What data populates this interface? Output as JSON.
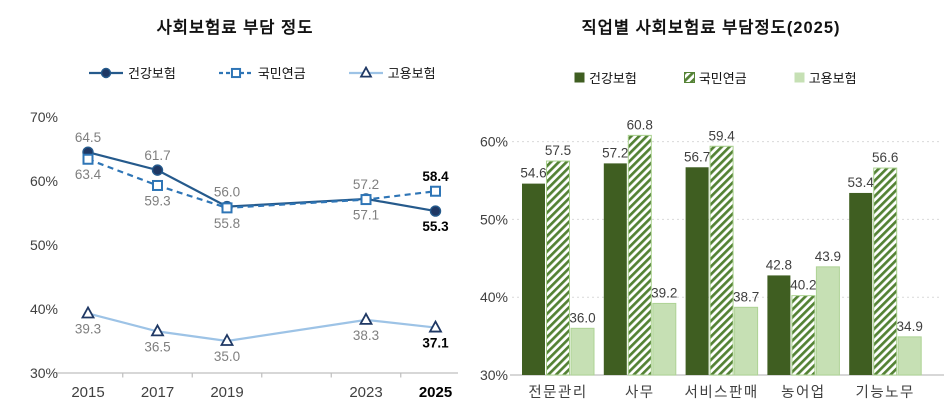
{
  "window": {
    "background": "#ffffff"
  },
  "chart_data": [
    {
      "type": "line",
      "title": "사회보험료 부담 정도",
      "categories": [
        "2015",
        "2017",
        "2019",
        "2023",
        "2025"
      ],
      "x_values": [
        2015,
        2017,
        2019,
        2023,
        2025
      ],
      "x_minor_ticks": [
        2016,
        2018,
        2020,
        2022,
        2024
      ],
      "ylim": [
        30,
        70
      ],
      "yticks": [
        30,
        40,
        50,
        60,
        70
      ],
      "ytick_suffix": "%",
      "grid": false,
      "legend_position": "top",
      "emphasize_last_category": true,
      "axis_color": "#bfbfbf",
      "tick_label_color": "#404040",
      "label_color": "#7f7f7f",
      "label_color_emphasis": "#000000",
      "series": [
        {
          "name": "건강보험",
          "values": [
            64.5,
            61.7,
            56.0,
            57.2,
            55.3
          ],
          "line_color": "#255a8c",
          "line_style": "solid",
          "marker": "circle",
          "marker_fill": "#1f3864",
          "marker_stroke": "#255a8c",
          "label_pos": [
            "above",
            "above",
            "above",
            "above",
            "below"
          ]
        },
        {
          "name": "국민연금",
          "values": [
            63.4,
            59.3,
            55.8,
            57.1,
            58.4
          ],
          "line_color": "#2e75b6",
          "line_style": "dashed",
          "marker": "square",
          "marker_fill": "#ffffff",
          "marker_stroke": "#2e75b6",
          "label_pos": [
            "below",
            "below",
            "below",
            "below",
            "above"
          ]
        },
        {
          "name": "고용보험",
          "values": [
            39.3,
            36.5,
            35.0,
            38.3,
            37.1
          ],
          "line_color": "#9dc3e6",
          "line_style": "solid",
          "marker": "triangle",
          "marker_fill": "#ffffff",
          "marker_stroke": "#1f3864",
          "label_pos": [
            "below",
            "below",
            "below",
            "below",
            "below"
          ]
        }
      ]
    },
    {
      "type": "bar",
      "title": "직업별 사회보험료 부담정도(2025)",
      "categories": [
        "전문관리",
        "사무",
        "서비스판매",
        "농어업",
        "기능노무"
      ],
      "ylim": [
        30,
        63.5
      ],
      "yticks": [
        30,
        40,
        50,
        60
      ],
      "ytick_suffix": "%",
      "grid": true,
      "grid_color": "#d9d9d9",
      "legend_position": "top",
      "axis_color": "#bfbfbf",
      "tick_label_color": "#404040",
      "label_color": "#3f3f3f",
      "series": [
        {
          "name": "건강보험",
          "values": [
            54.6,
            57.2,
            56.7,
            42.8,
            53.4
          ],
          "fill": "#3f5e21",
          "pattern": "solid"
        },
        {
          "name": "국민연금",
          "values": [
            57.5,
            60.8,
            59.4,
            40.2,
            56.6
          ],
          "fill": "#548235",
          "pattern": "hatch",
          "hatch_bg": "#ffffff",
          "border": "#a9d18e"
        },
        {
          "name": "고용보험",
          "values": [
            36.0,
            39.2,
            38.7,
            43.9,
            34.9
          ],
          "fill": "#c6e0b4",
          "pattern": "solid",
          "border": "#aed395"
        }
      ]
    }
  ]
}
